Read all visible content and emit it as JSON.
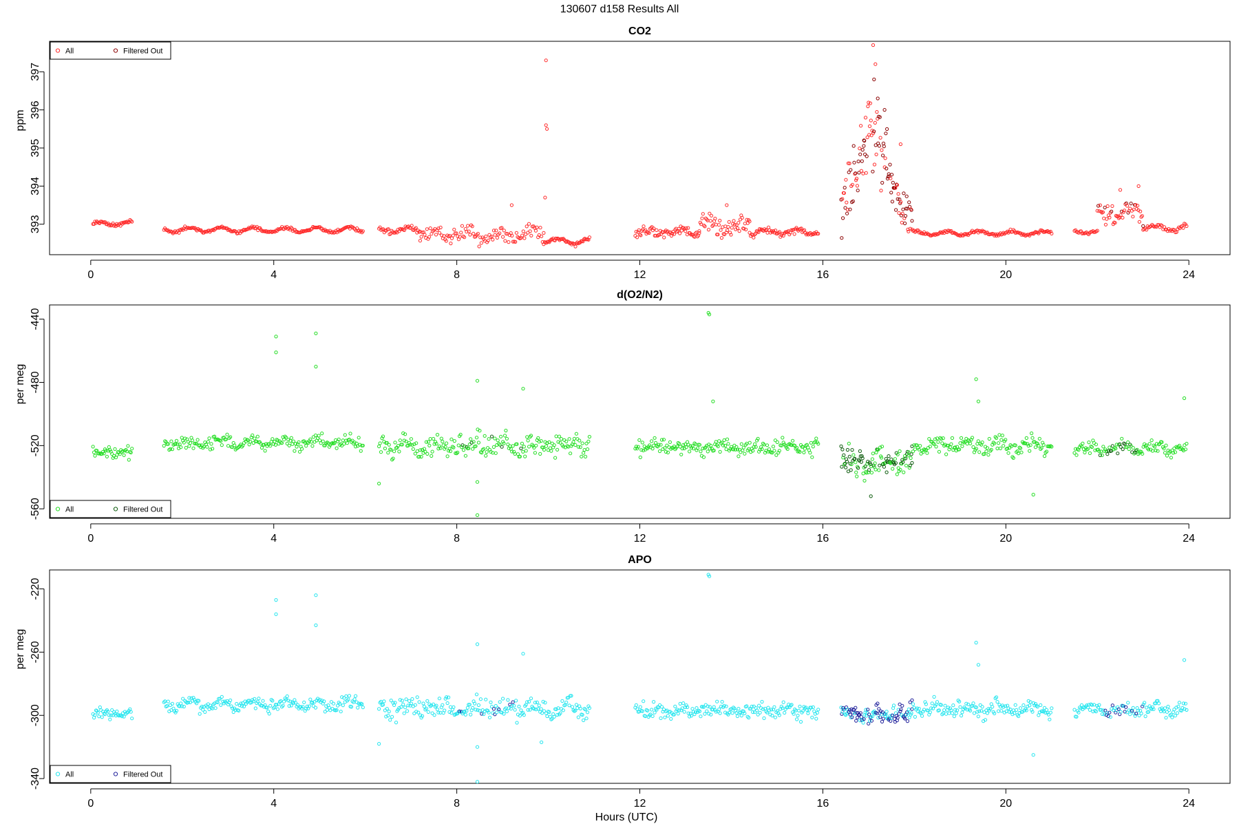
{
  "figure": {
    "title": "130607   d158   Results All",
    "xlabel": "Hours (UTC)"
  },
  "chart_data": [
    {
      "type": "scatter",
      "title": "CO2",
      "ylabel": "ppm",
      "xlabel": "Hours (UTC)",
      "xlim": [
        -0.9,
        24.9
      ],
      "ylim": [
        392.2,
        397.8
      ],
      "xticks": [
        0,
        4,
        8,
        12,
        16,
        20,
        24
      ],
      "yticks": [
        393,
        394,
        395,
        396,
        397
      ],
      "legend": {
        "position": "top-left",
        "entries": [
          "All",
          "Filtered Out"
        ]
      },
      "grid": false,
      "colors": {
        "all": "#ff2a2a",
        "filtered": "#8b0000"
      },
      "segments": [
        {
          "x0": 0.05,
          "x1": 0.9,
          "base": 393.02,
          "noise": 0.04,
          "wave": 0.05,
          "count": 42
        },
        {
          "x0": 1.6,
          "x1": 5.95,
          "base": 392.85,
          "noise": 0.04,
          "wave": 0.06,
          "count": 200
        },
        {
          "x0": 6.3,
          "x1": 7.2,
          "base": 392.85,
          "noise": 0.06,
          "wave": 0.06,
          "count": 40
        },
        {
          "x0": 7.2,
          "x1": 9.9,
          "base": 392.7,
          "noise": 0.22,
          "wave": 0.1,
          "count": 110
        },
        {
          "x0": 9.9,
          "x1": 10.9,
          "base": 392.55,
          "noise": 0.05,
          "wave": 0.08,
          "count": 50
        },
        {
          "x0": 11.9,
          "x1": 13.3,
          "base": 392.8,
          "noise": 0.12,
          "wave": 0.06,
          "count": 70
        },
        {
          "x0": 13.3,
          "x1": 14.4,
          "base": 392.95,
          "noise": 0.25,
          "wave": 0.1,
          "count": 55
        },
        {
          "x0": 14.4,
          "x1": 15.9,
          "base": 392.8,
          "noise": 0.08,
          "wave": 0.06,
          "count": 70
        },
        {
          "x0": 16.4,
          "x1": 17.95,
          "base": 393.3,
          "noise": 0.6,
          "wave": 0.0,
          "count": 120
        },
        {
          "x0": 17.95,
          "x1": 21.0,
          "base": 392.77,
          "noise": 0.04,
          "wave": 0.05,
          "count": 140
        },
        {
          "x0": 21.5,
          "x1": 22.0,
          "base": 392.8,
          "noise": 0.04,
          "wave": 0.03,
          "count": 22
        },
        {
          "x0": 22.0,
          "x1": 23.0,
          "base": 393.3,
          "noise": 0.25,
          "wave": 0.1,
          "count": 50
        },
        {
          "x0": 23.0,
          "x1": 23.95,
          "base": 392.9,
          "noise": 0.06,
          "wave": 0.08,
          "count": 40
        }
      ],
      "peak": {
        "center": 17.05,
        "width": 0.3,
        "height": 3.2
      },
      "outliers": [
        {
          "x": 9.95,
          "y": 397.3
        },
        {
          "x": 9.95,
          "y": 395.6
        },
        {
          "x": 9.97,
          "y": 395.5
        },
        {
          "x": 9.93,
          "y": 393.7
        },
        {
          "x": 9.2,
          "y": 393.5
        },
        {
          "x": 13.9,
          "y": 393.5
        },
        {
          "x": 17.1,
          "y": 397.7
        },
        {
          "x": 17.15,
          "y": 397.2
        },
        {
          "x": 17.12,
          "y": 396.8
        },
        {
          "x": 17.2,
          "y": 396.3
        },
        {
          "x": 17.35,
          "y": 396.0
        },
        {
          "x": 16.9,
          "y": 395.2
        },
        {
          "x": 17.7,
          "y": 395.1
        },
        {
          "x": 22.9,
          "y": 394.0
        },
        {
          "x": 22.5,
          "y": 393.9
        }
      ],
      "filtered_ranges": [
        [
          16.4,
          17.95
        ],
        [
          22.0,
          23.0
        ]
      ],
      "filtered_fraction": [
        0.55,
        0.2
      ]
    },
    {
      "type": "scatter",
      "title": "d(O2/N2)",
      "ylabel": "per meg",
      "xlabel": "Hours (UTC)",
      "xlim": [
        -0.9,
        24.9
      ],
      "ylim": [
        -566,
        -431
      ],
      "xticks": [
        0,
        4,
        8,
        12,
        16,
        20,
        24
      ],
      "yticks": [
        -560,
        -520,
        -480,
        -440
      ],
      "legend": {
        "position": "bottom-left",
        "entries": [
          "All",
          "Filtered Out"
        ]
      },
      "grid": false,
      "colors": {
        "all": "#22dd22",
        "filtered": "#0b5a0b"
      },
      "segments": [
        {
          "x0": 0.05,
          "x1": 0.9,
          "base": -525,
          "noise": 4,
          "wave": 1,
          "count": 40
        },
        {
          "x0": 1.6,
          "x1": 5.95,
          "base": -518,
          "noise": 4,
          "wave": 2,
          "count": 190
        },
        {
          "x0": 6.3,
          "x1": 10.9,
          "base": -520,
          "noise": 7,
          "wave": 2,
          "count": 210
        },
        {
          "x0": 11.9,
          "x1": 15.9,
          "base": -521,
          "noise": 5,
          "wave": 1,
          "count": 180
        },
        {
          "x0": 16.4,
          "x1": 17.95,
          "base": -530,
          "noise": 8,
          "wave": 2,
          "count": 110
        },
        {
          "x0": 17.95,
          "x1": 21.0,
          "base": -520,
          "noise": 5,
          "wave": 2,
          "count": 140
        },
        {
          "x0": 21.5,
          "x1": 23.95,
          "base": -522,
          "noise": 4,
          "wave": 2,
          "count": 110
        }
      ],
      "outliers": [
        {
          "x": 4.05,
          "y": -451
        },
        {
          "x": 4.05,
          "y": -461
        },
        {
          "x": 4.92,
          "y": -449
        },
        {
          "x": 4.92,
          "y": -470
        },
        {
          "x": 13.5,
          "y": -436
        },
        {
          "x": 13.52,
          "y": -437
        },
        {
          "x": 8.45,
          "y": -479
        },
        {
          "x": 9.45,
          "y": -484
        },
        {
          "x": 19.35,
          "y": -478
        },
        {
          "x": 19.4,
          "y": -492
        },
        {
          "x": 23.9,
          "y": -490
        },
        {
          "x": 8.45,
          "y": -564
        },
        {
          "x": 17.05,
          "y": -552
        },
        {
          "x": 20.6,
          "y": -551
        },
        {
          "x": 6.3,
          "y": -544
        },
        {
          "x": 8.45,
          "y": -543
        },
        {
          "x": 13.6,
          "y": -492
        }
      ],
      "filtered_ranges": [
        [
          16.4,
          17.95
        ],
        [
          22.0,
          23.0
        ],
        [
          8.0,
          10.0
        ]
      ],
      "filtered_fraction": [
        0.55,
        0.25,
        0.08
      ]
    },
    {
      "type": "scatter",
      "title": "APO",
      "ylabel": "per meg",
      "xlabel": "Hours (UTC)",
      "xlim": [
        -0.9,
        24.9
      ],
      "ylim": [
        -343,
        -208
      ],
      "xticks": [
        0,
        4,
        8,
        12,
        16,
        20,
        24
      ],
      "yticks": [
        -340,
        -300,
        -260,
        -220
      ],
      "legend": {
        "position": "bottom-left",
        "entries": [
          "All",
          "Filtered Out"
        ]
      },
      "grid": false,
      "colors": {
        "all": "#22e5ee",
        "filtered": "#1f1f9a"
      },
      "segments": [
        {
          "x0": 0.05,
          "x1": 0.9,
          "base": -299,
          "noise": 4,
          "wave": 1,
          "count": 40
        },
        {
          "x0": 1.6,
          "x1": 5.95,
          "base": -293,
          "noise": 4,
          "wave": 2,
          "count": 190
        },
        {
          "x0": 6.3,
          "x1": 10.9,
          "base": -296,
          "noise": 7,
          "wave": 2,
          "count": 210
        },
        {
          "x0": 11.9,
          "x1": 15.9,
          "base": -297,
          "noise": 5,
          "wave": 1,
          "count": 180
        },
        {
          "x0": 16.4,
          "x1": 17.95,
          "base": -299,
          "noise": 5,
          "wave": 1,
          "count": 110
        },
        {
          "x0": 17.95,
          "x1": 21.0,
          "base": -296,
          "noise": 5,
          "wave": 2,
          "count": 140
        },
        {
          "x0": 21.5,
          "x1": 23.95,
          "base": -296,
          "noise": 4,
          "wave": 2,
          "count": 110
        }
      ],
      "outliers": [
        {
          "x": 4.05,
          "y": -227
        },
        {
          "x": 4.05,
          "y": -236
        },
        {
          "x": 4.92,
          "y": -224
        },
        {
          "x": 4.92,
          "y": -243
        },
        {
          "x": 13.5,
          "y": -211
        },
        {
          "x": 13.52,
          "y": -212
        },
        {
          "x": 8.45,
          "y": -255
        },
        {
          "x": 9.45,
          "y": -261
        },
        {
          "x": 19.35,
          "y": -254
        },
        {
          "x": 19.4,
          "y": -268
        },
        {
          "x": 23.9,
          "y": -265
        },
        {
          "x": 8.45,
          "y": -342
        },
        {
          "x": 20.6,
          "y": -325
        },
        {
          "x": 6.3,
          "y": -318
        },
        {
          "x": 8.45,
          "y": -320
        },
        {
          "x": 9.85,
          "y": -317
        }
      ],
      "filtered_ranges": [
        [
          16.4,
          17.95
        ],
        [
          22.0,
          23.0
        ],
        [
          8.0,
          10.0
        ]
      ],
      "filtered_fraction": [
        0.6,
        0.25,
        0.08
      ]
    }
  ]
}
